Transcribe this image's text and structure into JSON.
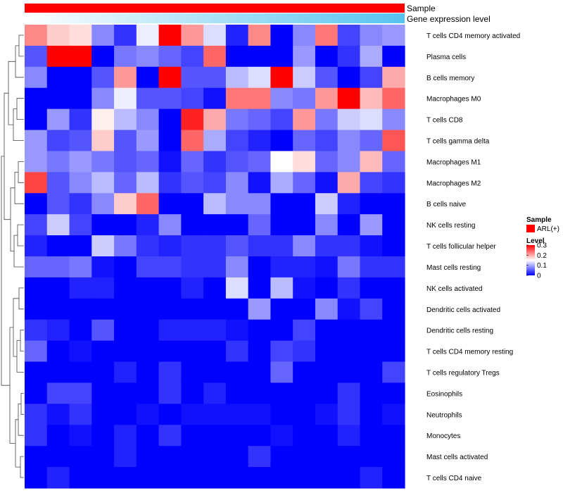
{
  "chart_data": {
    "type": "heatmap",
    "annotation_tracks": [
      {
        "label": "Sample",
        "value": "ARL(+)",
        "color": "#ff0000"
      },
      {
        "label": "Gene expression level",
        "gradient": [
          "#ffffff",
          "#56c3ef"
        ]
      }
    ],
    "rows": [
      "T cells CD4 memory activated",
      "Plasma cells",
      "B cells memory",
      "Macrophages M0",
      "T cells CD8",
      "T cells gamma delta",
      "Macrophages M1",
      "Macrophages M2",
      "B cells naive",
      "NK cells resting",
      "T cells follicular helper",
      "Mast cells resting",
      "NK cells activated",
      "Dendritic cells activated",
      "Dendritic cells resting",
      "T cells CD4 memory resting",
      "T cells regulatory  Tregs",
      "Eosinophils",
      "Neutrophils",
      "Monocytes",
      "Mast cells activated",
      "T cells CD4 naive"
    ],
    "values": [
      [
        0.22,
        0.18,
        0.17,
        0.08,
        0.03,
        0.14,
        0.3,
        0.21,
        0.13,
        0.02,
        0.22,
        0.0,
        0.08,
        0.23,
        0.04,
        0.08,
        0.09
      ],
      [
        0.05,
        0.3,
        0.3,
        0.0,
        0.07,
        0.08,
        0.06,
        0.04,
        0.24,
        0.0,
        0.0,
        0.0,
        0.09,
        0.0,
        0.03,
        0.1,
        0.0
      ],
      [
        0.08,
        0.0,
        0.0,
        0.05,
        0.21,
        0.0,
        0.3,
        0.05,
        0.05,
        0.11,
        0.13,
        0.3,
        0.12,
        0.05,
        0.0,
        0.04,
        0.2
      ],
      [
        0.0,
        0.0,
        0.0,
        0.08,
        0.14,
        0.05,
        0.05,
        0.04,
        0.01,
        0.23,
        0.23,
        0.08,
        0.07,
        0.21,
        0.3,
        0.19,
        0.24
      ],
      [
        0.0,
        0.09,
        0.03,
        0.16,
        0.11,
        0.08,
        0.0,
        0.28,
        0.2,
        0.07,
        0.06,
        0.04,
        0.21,
        0.07,
        0.12,
        0.13,
        0.08
      ],
      [
        0.09,
        0.04,
        0.05,
        0.18,
        0.05,
        0.09,
        0.0,
        0.24,
        0.1,
        0.04,
        0.02,
        0.0,
        0.06,
        0.04,
        0.08,
        0.06,
        0.25
      ],
      [
        0.09,
        0.07,
        0.09,
        0.07,
        0.05,
        0.06,
        0.01,
        0.06,
        0.03,
        0.05,
        0.06,
        0.15,
        0.17,
        0.06,
        0.08,
        0.19,
        0.06
      ],
      [
        0.26,
        0.05,
        0.08,
        0.11,
        0.06,
        0.11,
        0.03,
        0.05,
        0.04,
        0.08,
        0.01,
        0.1,
        0.06,
        0.01,
        0.2,
        0.04,
        0.03
      ],
      [
        0.0,
        0.05,
        0.03,
        0.08,
        0.18,
        0.24,
        0.0,
        0.0,
        0.11,
        0.08,
        0.08,
        0.0,
        0.0,
        0.12,
        0.02,
        0.0,
        0.0
      ],
      [
        0.04,
        0.12,
        0.04,
        0.0,
        0.0,
        0.02,
        0.08,
        0.0,
        0.0,
        0.0,
        0.06,
        0.0,
        0.0,
        0.08,
        0.0,
        0.09,
        0.0
      ],
      [
        0.02,
        0.0,
        0.0,
        0.12,
        0.07,
        0.03,
        0.02,
        0.03,
        0.03,
        0.05,
        0.03,
        0.03,
        0.08,
        0.03,
        0.03,
        0.01,
        0.0
      ],
      [
        0.06,
        0.06,
        0.07,
        0.01,
        0.0,
        0.04,
        0.04,
        0.03,
        0.03,
        0.08,
        0.0,
        0.02,
        0.02,
        0.01,
        0.07,
        0.03,
        0.03
      ],
      [
        0.0,
        0.0,
        0.02,
        0.02,
        0.0,
        0.0,
        0.0,
        0.02,
        0.0,
        0.13,
        0.0,
        0.11,
        0.01,
        0.0,
        0.03,
        0.0,
        0.0
      ],
      [
        0.0,
        0.0,
        0.0,
        0.0,
        0.0,
        0.0,
        0.0,
        0.0,
        0.0,
        0.0,
        0.09,
        0.0,
        0.0,
        0.08,
        0.01,
        0.04,
        0.0
      ],
      [
        0.03,
        0.02,
        0.0,
        0.05,
        0.0,
        0.0,
        0.02,
        0.02,
        0.02,
        0.01,
        0.0,
        0.0,
        0.04,
        0.0,
        0.0,
        0.0,
        0.0
      ],
      [
        0.06,
        0.0,
        0.01,
        0.0,
        0.0,
        0.0,
        0.0,
        0.0,
        0.0,
        0.03,
        0.0,
        0.04,
        0.03,
        0.0,
        0.0,
        0.0,
        0.0
      ],
      [
        0.0,
        0.0,
        0.0,
        0.0,
        0.02,
        0.0,
        0.03,
        0.0,
        0.0,
        0.0,
        0.0,
        0.06,
        0.0,
        0.0,
        0.0,
        0.0,
        0.04
      ],
      [
        0.0,
        0.04,
        0.04,
        0.0,
        0.0,
        0.0,
        0.03,
        0.0,
        0.02,
        0.0,
        0.0,
        0.0,
        0.0,
        0.0,
        0.03,
        0.0,
        0.0
      ],
      [
        0.03,
        0.01,
        0.03,
        0.0,
        0.0,
        0.01,
        0.0,
        0.01,
        0.01,
        0.01,
        0.01,
        0.0,
        0.0,
        0.01,
        0.03,
        0.0,
        0.01
      ],
      [
        0.03,
        0.0,
        0.01,
        0.0,
        0.02,
        0.0,
        0.03,
        0.0,
        0.0,
        0.0,
        0.0,
        0.01,
        0.0,
        0.0,
        0.02,
        0.0,
        0.0
      ],
      [
        0.0,
        0.0,
        0.0,
        0.0,
        0.02,
        0.0,
        0.0,
        0.0,
        0.0,
        0.0,
        0.03,
        0.0,
        0.0,
        0.0,
        0.0,
        0.0,
        0.0
      ],
      [
        0.0,
        0.02,
        0.0,
        0.0,
        0.0,
        0.0,
        0.0,
        0.0,
        0.0,
        0.0,
        0.0,
        0.0,
        0.0,
        0.0,
        0.0,
        0.02,
        0.0
      ]
    ],
    "color_scale": {
      "min": 0,
      "mid": 0.15,
      "max": 0.3,
      "low_color": "#0000ff",
      "mid_color": "#ffffff",
      "high_color": "#ff0000"
    },
    "legend": {
      "sample_title": "Sample",
      "sample_label": "ARL(+)",
      "sample_color": "#ff0000",
      "level_title": "Level",
      "ticks": [
        {
          "value": 0.3,
          "label": "0.3"
        },
        {
          "value": 0.2,
          "label": "0.2"
        },
        {
          "value": 0.1,
          "label": "0.1"
        },
        {
          "value": 0,
          "label": "0"
        }
      ],
      "placement": "right"
    },
    "row_dendrogram": true
  }
}
